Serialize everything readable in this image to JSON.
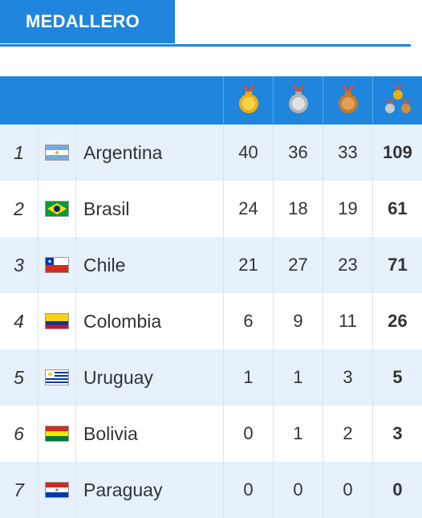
{
  "header": {
    "tab_label": "MEDALLERO"
  },
  "columns": [
    {
      "name": "gold-medal-icon",
      "color": "#f2c31a"
    },
    {
      "name": "silver-medal-icon",
      "color": "#c9c9c9"
    },
    {
      "name": "bronze-medal-icon",
      "color": "#d38b3a"
    },
    {
      "name": "total-medals-icon"
    }
  ],
  "rows": [
    {
      "rank": "1",
      "country": "Argentina",
      "flag": "argentina-flag-icon",
      "gold": "40",
      "silver": "36",
      "bronze": "33",
      "total": "109"
    },
    {
      "rank": "2",
      "country": "Brasil",
      "flag": "brazil-flag-icon",
      "gold": "24",
      "silver": "18",
      "bronze": "19",
      "total": "61"
    },
    {
      "rank": "3",
      "country": "Chile",
      "flag": "chile-flag-icon",
      "gold": "21",
      "silver": "27",
      "bronze": "23",
      "total": "71"
    },
    {
      "rank": "4",
      "country": "Colombia",
      "flag": "colombia-flag-icon",
      "gold": "6",
      "silver": "9",
      "bronze": "11",
      "total": "26"
    },
    {
      "rank": "5",
      "country": "Uruguay",
      "flag": "uruguay-flag-icon",
      "gold": "1",
      "silver": "1",
      "bronze": "3",
      "total": "5"
    },
    {
      "rank": "6",
      "country": "Bolivia",
      "flag": "bolivia-flag-icon",
      "gold": "0",
      "silver": "1",
      "bronze": "2",
      "total": "3"
    },
    {
      "rank": "7",
      "country": "Paraguay",
      "flag": "paraguay-flag-icon",
      "gold": "0",
      "silver": "0",
      "bronze": "0",
      "total": "0"
    }
  ]
}
